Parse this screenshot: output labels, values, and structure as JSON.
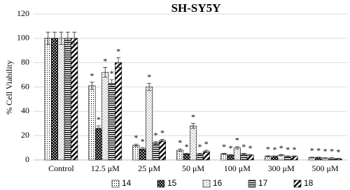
{
  "chart_data": {
    "type": "bar",
    "title": "SH-SY5Y",
    "y_label": "% Cell Viability",
    "categories": [
      "Control",
      "12.5 μM",
      "25 μM",
      "50 μM",
      "100 μM",
      "300 μM",
      "500 μM"
    ],
    "ylim": [
      0,
      120
    ],
    "yticks": [
      0,
      20,
      40,
      60,
      80,
      100,
      120
    ],
    "grid": true,
    "legend": "bottom",
    "series": [
      {
        "name": "14",
        "color": "#000000",
        "pattern": "dots",
        "values": [
          100,
          61,
          12,
          8,
          5,
          3,
          2
        ],
        "errors": [
          5,
          3,
          1,
          1,
          0.5,
          0.5,
          0.3
        ],
        "markers": [
          null,
          "*",
          "*",
          "*",
          "*",
          "*",
          "*"
        ]
      },
      {
        "name": "15",
        "color": "#000000",
        "pattern": "checker",
        "values": [
          100,
          26,
          9,
          5,
          4,
          3,
          2
        ],
        "errors": [
          5,
          2,
          1,
          0.5,
          0.5,
          0.3,
          0.3
        ],
        "markers": [
          null,
          "*",
          "*",
          "*",
          "*",
          "*",
          "*"
        ]
      },
      {
        "name": "16",
        "color": "#000000",
        "pattern": "sparse-dots",
        "values": [
          100,
          72,
          60,
          28,
          10,
          4,
          1.5
        ],
        "errors": [
          5,
          4,
          3,
          2,
          1,
          0.5,
          0.3
        ],
        "markers": [
          null,
          "*",
          "*",
          "*",
          "*",
          "*",
          "*"
        ]
      },
      {
        "name": "17",
        "color": "#000000",
        "pattern": "hlines",
        "values": [
          100,
          63,
          14,
          5,
          5,
          3,
          1.5
        ],
        "errors": [
          5,
          3,
          1,
          0.5,
          0.5,
          0.3,
          0.3
        ],
        "markers": [
          null,
          "*",
          "*",
          "*",
          "*",
          "*",
          "*"
        ]
      },
      {
        "name": "18",
        "color": "#000000",
        "pattern": "diagonal",
        "values": [
          100,
          80,
          16,
          7,
          4,
          3,
          1
        ],
        "errors": [
          5,
          4,
          1,
          1,
          0.5,
          0.3,
          0.3
        ],
        "markers": [
          null,
          "*",
          "*",
          "*",
          "*",
          "*",
          "*"
        ]
      }
    ]
  }
}
